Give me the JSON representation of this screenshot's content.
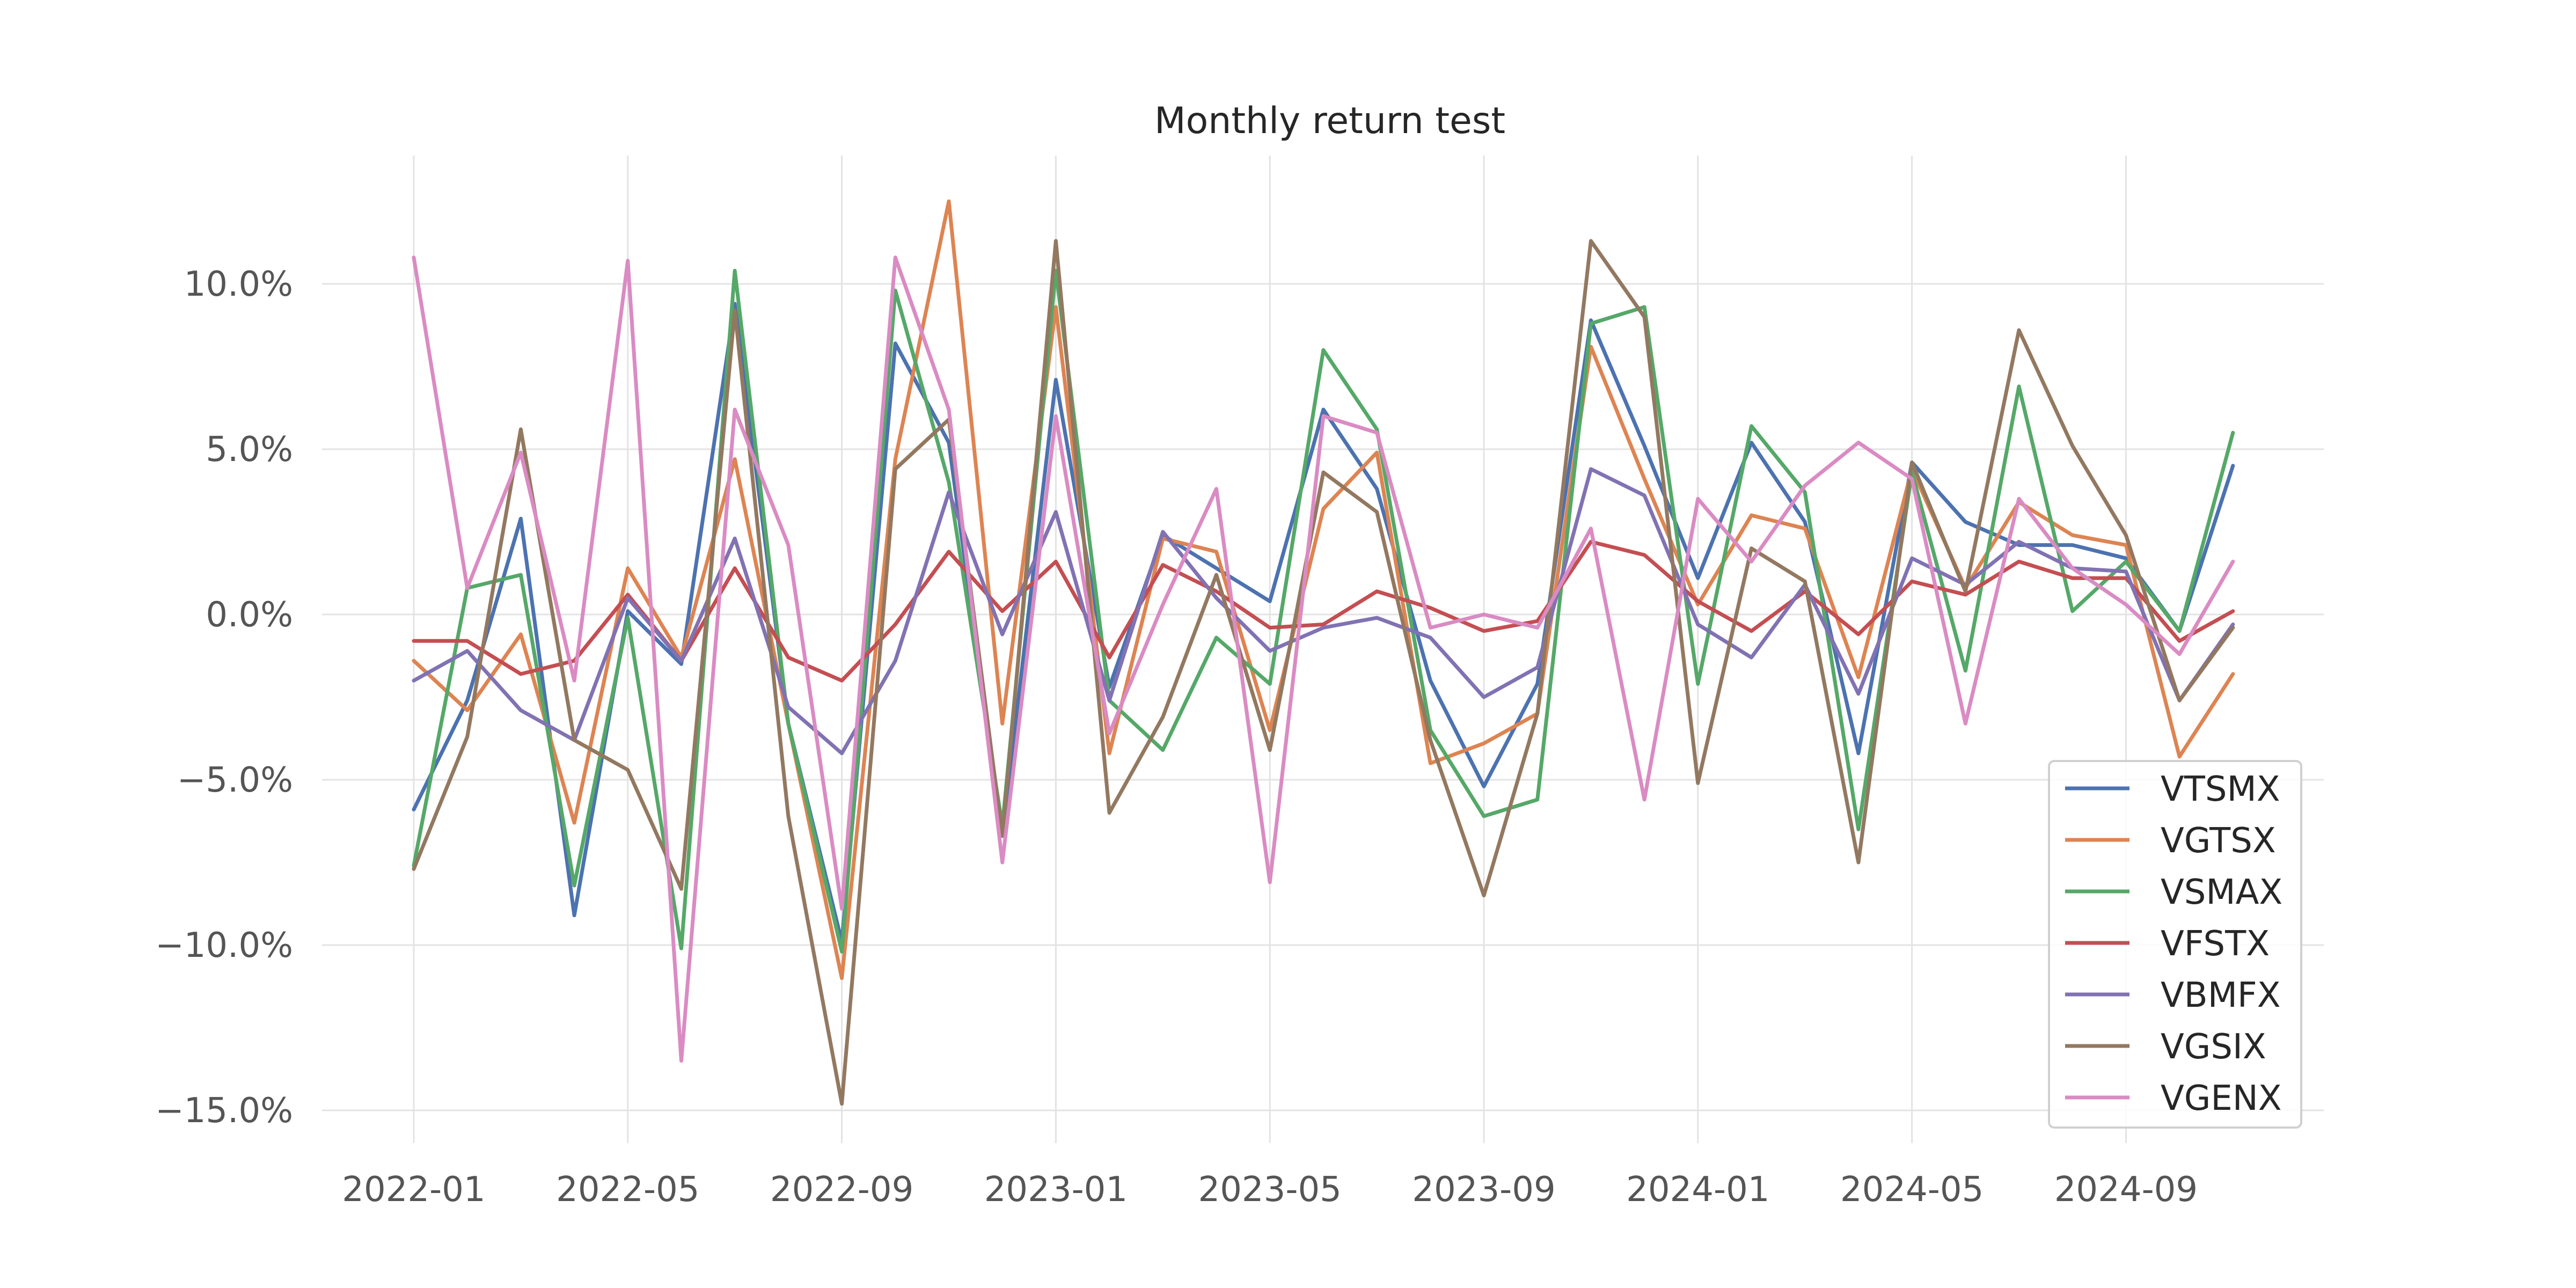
{
  "chart_data": {
    "type": "line",
    "title": "Monthly return test",
    "xlabel": "",
    "ylabel": "",
    "x": [
      "2022-01",
      "2022-02",
      "2022-03",
      "2022-04",
      "2022-05",
      "2022-06",
      "2022-07",
      "2022-08",
      "2022-09",
      "2022-10",
      "2022-11",
      "2022-12",
      "2023-01",
      "2023-02",
      "2023-03",
      "2023-04",
      "2023-05",
      "2023-06",
      "2023-07",
      "2023-08",
      "2023-09",
      "2023-10",
      "2023-11",
      "2023-12",
      "2024-01",
      "2024-02",
      "2024-03",
      "2024-04",
      "2024-05",
      "2024-06",
      "2024-07",
      "2024-08",
      "2024-09",
      "2024-10",
      "2024-11"
    ],
    "x_ticks": [
      "2022-01",
      "2022-05",
      "2022-09",
      "2023-01",
      "2023-05",
      "2023-09",
      "2024-01",
      "2024-05",
      "2024-09"
    ],
    "y_ticks": [
      10,
      5,
      0,
      -5,
      -10,
      -15
    ],
    "y_tick_labels": [
      "10.0%",
      "5.0%",
      "0.0%",
      "−5.0%",
      "−10.0%",
      "−15.0%"
    ],
    "ylim": [
      -16,
      14
    ],
    "grid": true,
    "legend_position": "lower-right",
    "series": [
      {
        "name": "VTSMX",
        "color": "#4c72b0",
        "values": [
          -5.9,
          -2.6,
          2.9,
          -9.1,
          0.1,
          -1.5,
          9.4,
          -3.3,
          -9.9,
          8.2,
          5.2,
          -6.7,
          7.1,
          -2.2,
          2.4,
          1.4,
          0.4,
          6.2,
          3.8,
          -2.0,
          -5.2,
          -2.1,
          8.9,
          5.1,
          1.1,
          5.2,
          2.8,
          -4.2,
          4.6,
          2.8,
          2.1,
          2.1,
          1.7,
          -0.5,
          4.5
        ]
      },
      {
        "name": "VGTSX",
        "color": "#dd8452",
        "values": [
          -1.4,
          -2.9,
          -0.6,
          -6.3,
          1.4,
          -1.3,
          4.7,
          -3.3,
          -11.0,
          4.7,
          12.5,
          -3.3,
          9.3,
          -4.2,
          2.3,
          1.9,
          -3.5,
          3.2,
          4.9,
          -4.5,
          -3.9,
          -3.0,
          8.1,
          4.1,
          0.3,
          3.0,
          2.6,
          -1.9,
          4.4,
          0.8,
          3.4,
          2.4,
          2.1,
          -4.3,
          -1.8
        ]
      },
      {
        "name": "VSMAX",
        "color": "#55a868",
        "values": [
          -7.6,
          0.8,
          1.2,
          -8.2,
          -0.1,
          -10.1,
          10.4,
          -3.3,
          -10.2,
          9.8,
          4.0,
          -6.4,
          10.4,
          -2.6,
          -4.1,
          -0.7,
          -2.1,
          8.0,
          5.6,
          -3.5,
          -6.1,
          -5.6,
          8.8,
          9.3,
          -2.1,
          5.7,
          3.7,
          -6.5,
          4.3,
          -1.7,
          6.9,
          0.1,
          1.6,
          -0.5,
          5.5
        ]
      },
      {
        "name": "VFSTX",
        "color": "#c44e52",
        "values": [
          -0.8,
          -0.8,
          -1.8,
          -1.4,
          0.6,
          -1.4,
          1.4,
          -1.3,
          -2.0,
          -0.3,
          1.9,
          0.1,
          1.6,
          -1.3,
          1.5,
          0.7,
          -0.4,
          -0.3,
          0.7,
          0.2,
          -0.5,
          -0.2,
          2.2,
          1.8,
          0.4,
          -0.5,
          0.7,
          -0.6,
          1.0,
          0.6,
          1.6,
          1.1,
          1.1,
          -0.8,
          0.1
        ]
      },
      {
        "name": "VBMFX",
        "color": "#8172b3",
        "values": [
          -2.0,
          -1.1,
          -2.9,
          -3.8,
          0.5,
          -1.4,
          2.3,
          -2.8,
          -4.2,
          -1.4,
          3.7,
          -0.6,
          3.1,
          -2.6,
          2.5,
          0.5,
          -1.1,
          -0.4,
          -0.1,
          -0.7,
          -2.5,
          -1.6,
          4.4,
          3.6,
          -0.3,
          -1.3,
          0.9,
          -2.4,
          1.7,
          0.9,
          2.2,
          1.4,
          1.3,
          -2.6,
          -0.3
        ]
      },
      {
        "name": "VGSIX",
        "color": "#937860",
        "values": [
          -7.7,
          -3.7,
          5.6,
          -3.8,
          -4.7,
          -8.3,
          9.2,
          -6.1,
          -14.8,
          4.4,
          5.9,
          -6.7,
          11.3,
          -6.0,
          -3.1,
          1.2,
          -4.1,
          4.3,
          3.1,
          -3.8,
          -8.5,
          -3.0,
          11.3,
          9.0,
          -5.1,
          2.0,
          1.0,
          -7.5,
          4.6,
          0.7,
          8.6,
          5.1,
          2.4,
          -2.6,
          -0.4
        ]
      },
      {
        "name": "VGENX",
        "color": "#da8bc3",
        "values": [
          10.8,
          0.8,
          4.9,
          -2.0,
          10.7,
          -13.5,
          6.2,
          2.1,
          -8.9,
          10.8,
          6.2,
          -7.5,
          6.0,
          -3.6,
          0.3,
          3.8,
          -8.1,
          6.0,
          5.5,
          -0.4,
          0.0,
          -0.4,
          2.6,
          -5.6,
          3.5,
          1.6,
          3.9,
          5.2,
          4.1,
          -3.3,
          3.5,
          1.4,
          0.3,
          -1.2,
          1.6
        ]
      }
    ]
  }
}
